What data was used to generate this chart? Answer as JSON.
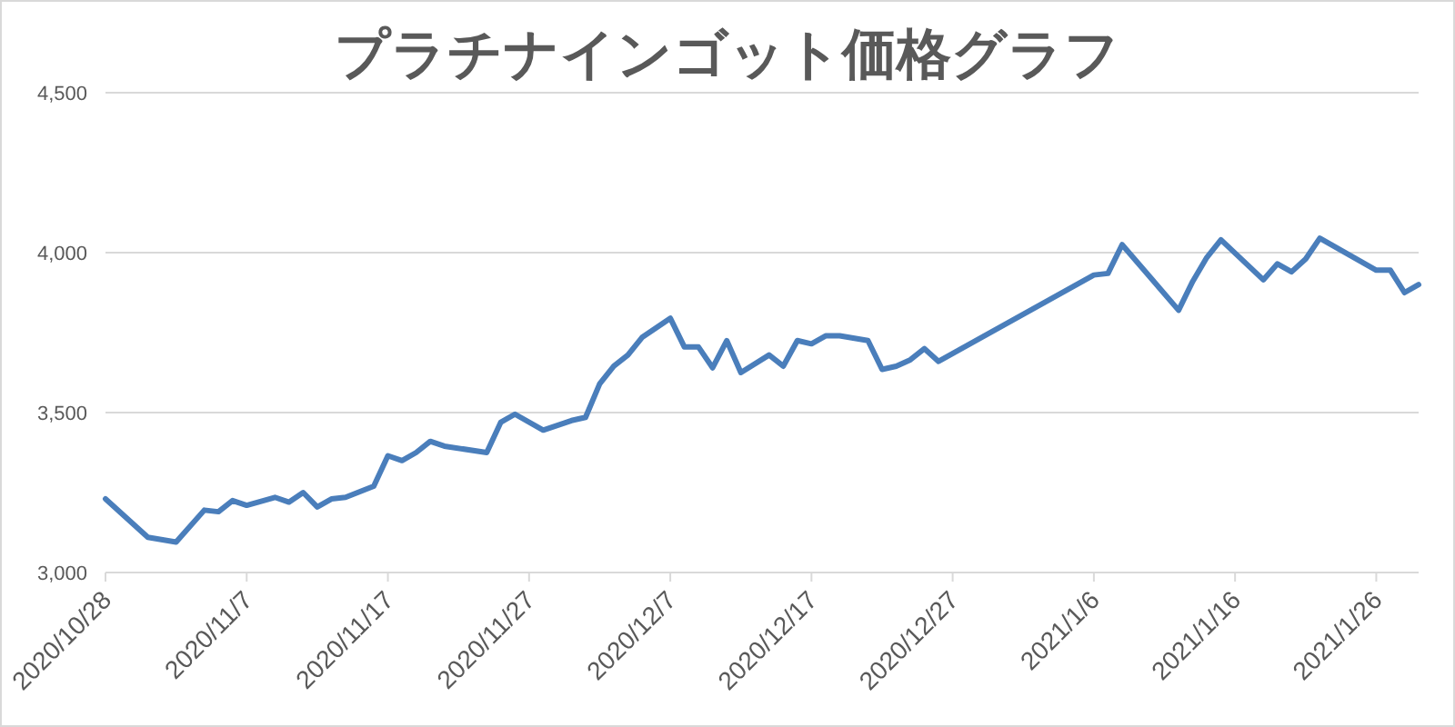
{
  "chart_data": {
    "type": "line",
    "title": "プラチナインゴット価格グラフ",
    "x": [
      "2020-10-28",
      "2020-10-31",
      "2020-11-02",
      "2020-11-04",
      "2020-11-05",
      "2020-11-06",
      "2020-11-07",
      "2020-11-09",
      "2020-11-10",
      "2020-11-11",
      "2020-11-12",
      "2020-11-13",
      "2020-11-14",
      "2020-11-16",
      "2020-11-17",
      "2020-11-18",
      "2020-11-19",
      "2020-11-20",
      "2020-11-21",
      "2020-11-24",
      "2020-11-25",
      "2020-11-26",
      "2020-11-28",
      "2020-11-30",
      "2020-12-01",
      "2020-12-02",
      "2020-12-03",
      "2020-12-04",
      "2020-12-05",
      "2020-12-07",
      "2020-12-08",
      "2020-12-09",
      "2020-12-10",
      "2020-12-11",
      "2020-12-12",
      "2020-12-14",
      "2020-12-15",
      "2020-12-16",
      "2020-12-17",
      "2020-12-18",
      "2020-12-19",
      "2020-12-21",
      "2020-12-22",
      "2020-12-23",
      "2020-12-24",
      "2020-12-25",
      "2020-12-26",
      "2021-01-06",
      "2021-01-07",
      "2021-01-08",
      "2021-01-12",
      "2021-01-13",
      "2021-01-14",
      "2021-01-15",
      "2021-01-18",
      "2021-01-19",
      "2021-01-20",
      "2021-01-21",
      "2021-01-22",
      "2021-01-26",
      "2021-01-27",
      "2021-01-28",
      "2021-01-29"
    ],
    "series": [
      {
        "color": "#4a7ebb",
        "values": [
          3230,
          3110,
          3095,
          3195,
          3190,
          3225,
          3210,
          3235,
          3220,
          3250,
          3205,
          3230,
          3235,
          3270,
          3365,
          3350,
          3375,
          3410,
          3395,
          3375,
          3470,
          3495,
          3445,
          3475,
          3485,
          3590,
          3645,
          3680,
          3735,
          3795,
          3705,
          3705,
          3640,
          3725,
          3625,
          3680,
          3645,
          3725,
          3715,
          3740,
          3740,
          3725,
          3635,
          3645,
          3665,
          3700,
          3660,
          3930,
          3935,
          4025,
          3820,
          3910,
          3985,
          4040,
          3915,
          3965,
          3940,
          3980,
          4045,
          3945,
          3945,
          3875,
          3900
        ]
      }
    ],
    "xlim": [
      "2020-10-28",
      "2021-01-29"
    ],
    "xticks": [
      {
        "value": "2020-10-28",
        "label": "2020/10/28"
      },
      {
        "value": "2020-11-07",
        "label": "2020/11/7"
      },
      {
        "value": "2020-11-17",
        "label": "2020/11/17"
      },
      {
        "value": "2020-11-27",
        "label": "2020/11/27"
      },
      {
        "value": "2020-12-07",
        "label": "2020/12/7"
      },
      {
        "value": "2020-12-17",
        "label": "2020/12/17"
      },
      {
        "value": "2020-12-27",
        "label": "2020/12/27"
      },
      {
        "value": "2021-01-06",
        "label": "2021/1/6"
      },
      {
        "value": "2021-01-16",
        "label": "2021/1/16"
      },
      {
        "value": "2021-01-26",
        "label": "2021/1/26"
      }
    ],
    "ylim": [
      3000,
      4500
    ],
    "yticks": [
      {
        "value": 3000,
        "label": "3,000"
      },
      {
        "value": 3500,
        "label": "3,500"
      },
      {
        "value": 4000,
        "label": "4,000"
      },
      {
        "value": 4500,
        "label": "4,500"
      }
    ],
    "grid": "y"
  }
}
